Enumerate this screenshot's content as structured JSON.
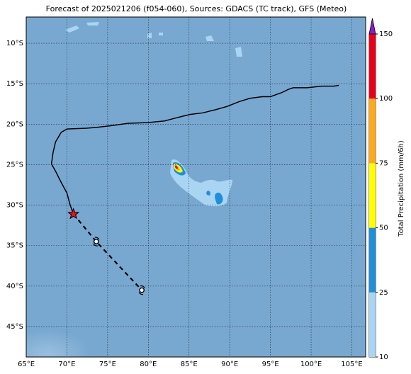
{
  "chart_data": {
    "type": "map",
    "title": "Forecast of 2025021206 (f054-060), Sources: GDACS (TC track), GFS (Meteo)",
    "xlim": [
      65,
      106.7
    ],
    "ylim": [
      -48.76,
      -6.76
    ],
    "xticks": [
      {
        "value": 65,
        "label": "65°E"
      },
      {
        "value": 70,
        "label": "70°E"
      },
      {
        "value": 75,
        "label": "75°E"
      },
      {
        "value": 80,
        "label": "80°E"
      },
      {
        "value": 85,
        "label": "85°E"
      },
      {
        "value": 90,
        "label": "90°E"
      },
      {
        "value": 95,
        "label": "95°E"
      },
      {
        "value": 100,
        "label": "100°E"
      },
      {
        "value": 105,
        "label": "105°E"
      }
    ],
    "yticks": [
      {
        "value": -10,
        "label": "10°S"
      },
      {
        "value": -15,
        "label": "15°S"
      },
      {
        "value": -20,
        "label": "20°S"
      },
      {
        "value": -25,
        "label": "25°S"
      },
      {
        "value": -30,
        "label": "30°S"
      },
      {
        "value": -35,
        "label": "35°S"
      },
      {
        "value": -40,
        "label": "40°S"
      },
      {
        "value": -45,
        "label": "45°S"
      }
    ],
    "grid": true,
    "colorbar": {
      "label": "Total Precipitation (mm/6h)",
      "ticks": [
        10,
        25,
        50,
        75,
        100,
        150
      ],
      "colors": [
        "#a9d5f3",
        "#1e8fd8",
        "#ffff00",
        "#ffaa1a",
        "#e8001a"
      ],
      "extend_color": "#8a1ec8"
    },
    "past_track": {
      "color": "#000000",
      "lon": [
        103.4,
        102.8,
        101.3,
        99.5,
        97.8,
        97.2,
        96.4,
        95.0,
        94.0,
        92.5,
        91.2,
        89.7,
        88.3,
        86.7,
        85.1,
        83.5,
        82.0,
        80.0,
        77.5,
        75.3,
        73.6,
        72.4,
        70.0,
        69.3,
        68.6,
        68.3,
        68.1,
        68.6,
        69.3,
        70.0,
        70.4,
        70.8
      ],
      "lat": [
        -15.2,
        -15.3,
        -15.3,
        -15.5,
        -15.5,
        -15.7,
        -16.1,
        -16.6,
        -16.6,
        -16.8,
        -17.2,
        -17.8,
        -18.2,
        -18.6,
        -18.8,
        -19.2,
        -19.6,
        -19.8,
        -19.9,
        -20.2,
        -20.4,
        -20.5,
        -20.6,
        -21.0,
        -22.2,
        -23.5,
        -24.9,
        -25.8,
        -27.2,
        -28.5,
        -30.0,
        -31.1
      ]
    },
    "forecast_track": {
      "color": "#000000",
      "lon": [
        70.8,
        73.6,
        79.2
      ],
      "lat": [
        -31.1,
        -34.5,
        -40.5
      ]
    },
    "current_position": {
      "lon": 70.8,
      "lat": -31.1,
      "color": "#e8101a"
    }
  }
}
